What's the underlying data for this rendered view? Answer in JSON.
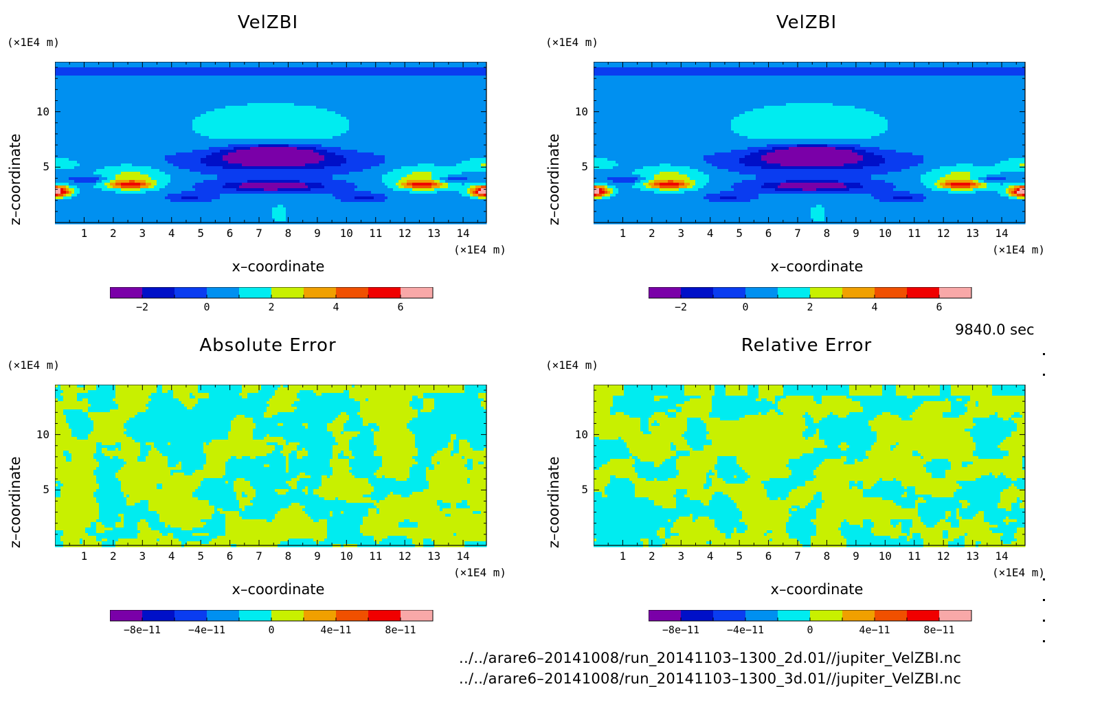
{
  "panels": [
    {
      "title": "VelZBI",
      "x_unit": "(×1E4 m)",
      "y_unit": "(×1E4 m)",
      "xlabel": "x–coordinate",
      "ylabel": "z–coordinate",
      "field": "velocity",
      "colorbar_ticks": [
        "−2",
        "0",
        "2",
        "4",
        "6"
      ]
    },
    {
      "title": "VelZBI",
      "x_unit": "(×1E4 m)",
      "y_unit": "(×1E4 m)",
      "xlabel": "x–coordinate",
      "ylabel": "z–coordinate",
      "field": "velocity",
      "colorbar_ticks": [
        "−2",
        "0",
        "2",
        "4",
        "6"
      ]
    },
    {
      "title": "Absolute Error",
      "x_unit": "(×1E4 m)",
      "y_unit": "(×1E4 m)",
      "xlabel": "x–coordinate",
      "ylabel": "z–coordinate",
      "field": "noise",
      "colorbar_ticks": [
        "−8e−11",
        "−4e−11",
        "0",
        "4e−11",
        "8e−11"
      ]
    },
    {
      "title": "Relative Error",
      "x_unit": "(×1E4 m)",
      "y_unit": "(×1E4 m)",
      "xlabel": "x–coordinate",
      "ylabel": "z–coordinate",
      "field": "noise",
      "colorbar_ticks": [
        "−8e−11",
        "−4e−11",
        "0",
        "4e−11",
        "8e−11"
      ]
    }
  ],
  "timestamp": "9840.0 sec",
  "files": [
    "../../arare6–20141008/run_20141103–1300_2d.01//jupiter_VelZBI.nc",
    "../../arare6–20141008/run_20141103–1300_3d.01//jupiter_VelZBI.nc"
  ],
  "colors": {
    "palette": [
      "#7a00a8",
      "#0010c8",
      "#0a3cf0",
      "#0090f0",
      "#00ecf0",
      "#c8f000",
      "#f0a000",
      "#f05000",
      "#f00000",
      "#f8a8a8"
    ]
  },
  "chart_data": [
    {
      "type": "heatmap",
      "title": "VelZBI",
      "xlabel": "x–coordinate",
      "ylabel": "z–coordinate",
      "x_ticks": [
        1,
        2,
        3,
        4,
        5,
        6,
        7,
        8,
        9,
        10,
        11,
        12,
        13,
        14
      ],
      "y_ticks": [
        5,
        10
      ],
      "xlim": [
        0,
        14.8
      ],
      "ylim": [
        0,
        14.5
      ],
      "colorbar_levels": [
        -3,
        -2,
        -1,
        0,
        1,
        2,
        3,
        4,
        5,
        6,
        7
      ],
      "colorbar_ticks": [
        -2,
        0,
        2,
        4,
        6
      ],
      "features": {
        "central_downdraft_center": [
          7.5,
          6.3
        ],
        "central_downdraft_min": -3,
        "max_value_near_edges": 6,
        "max_value_locations": [
          [
            0.2,
            2.8
          ],
          [
            14.6,
            2.8
          ]
        ],
        "background_value": -0.5
      }
    },
    {
      "type": "heatmap",
      "title": "VelZBI",
      "xlabel": "x–coordinate",
      "ylabel": "z–coordinate",
      "x_ticks": [
        1,
        2,
        3,
        4,
        5,
        6,
        7,
        8,
        9,
        10,
        11,
        12,
        13,
        14
      ],
      "y_ticks": [
        5,
        10
      ],
      "xlim": [
        0,
        14.8
      ],
      "ylim": [
        0,
        14.5
      ],
      "colorbar_levels": [
        -3,
        -2,
        -1,
        0,
        1,
        2,
        3,
        4,
        5,
        6,
        7
      ],
      "colorbar_ticks": [
        -2,
        0,
        2,
        4,
        6
      ],
      "features": {
        "central_downdraft_center": [
          7.5,
          6.3
        ],
        "central_downdraft_min": -3,
        "max_value_near_edges": 6,
        "max_value_locations": [
          [
            0.2,
            2.8
          ],
          [
            14.6,
            2.8
          ]
        ],
        "background_value": -0.5
      }
    },
    {
      "type": "heatmap",
      "title": "Absolute Error",
      "xlabel": "x–coordinate",
      "ylabel": "z–coordinate",
      "x_ticks": [
        1,
        2,
        3,
        4,
        5,
        6,
        7,
        8,
        9,
        10,
        11,
        12,
        13,
        14
      ],
      "y_ticks": [
        5,
        10
      ],
      "xlim": [
        0,
        14.8
      ],
      "ylim": [
        0,
        14.5
      ],
      "colorbar_ticks": [
        "-8e-11",
        "-4e-11",
        "0",
        "4e-11",
        "8e-11"
      ],
      "value_range": [
        -2e-11,
        2e-11
      ]
    },
    {
      "type": "heatmap",
      "title": "Relative Error",
      "xlabel": "x–coordinate",
      "ylabel": "z–coordinate",
      "x_ticks": [
        1,
        2,
        3,
        4,
        5,
        6,
        7,
        8,
        9,
        10,
        11,
        12,
        13,
        14
      ],
      "y_ticks": [
        5,
        10
      ],
      "xlim": [
        0,
        14.8
      ],
      "ylim": [
        0,
        14.5
      ],
      "colorbar_ticks": [
        "-8e-11",
        "-4e-11",
        "0",
        "4e-11",
        "8e-11"
      ],
      "value_range": [
        -2e-11,
        2e-11
      ]
    }
  ]
}
